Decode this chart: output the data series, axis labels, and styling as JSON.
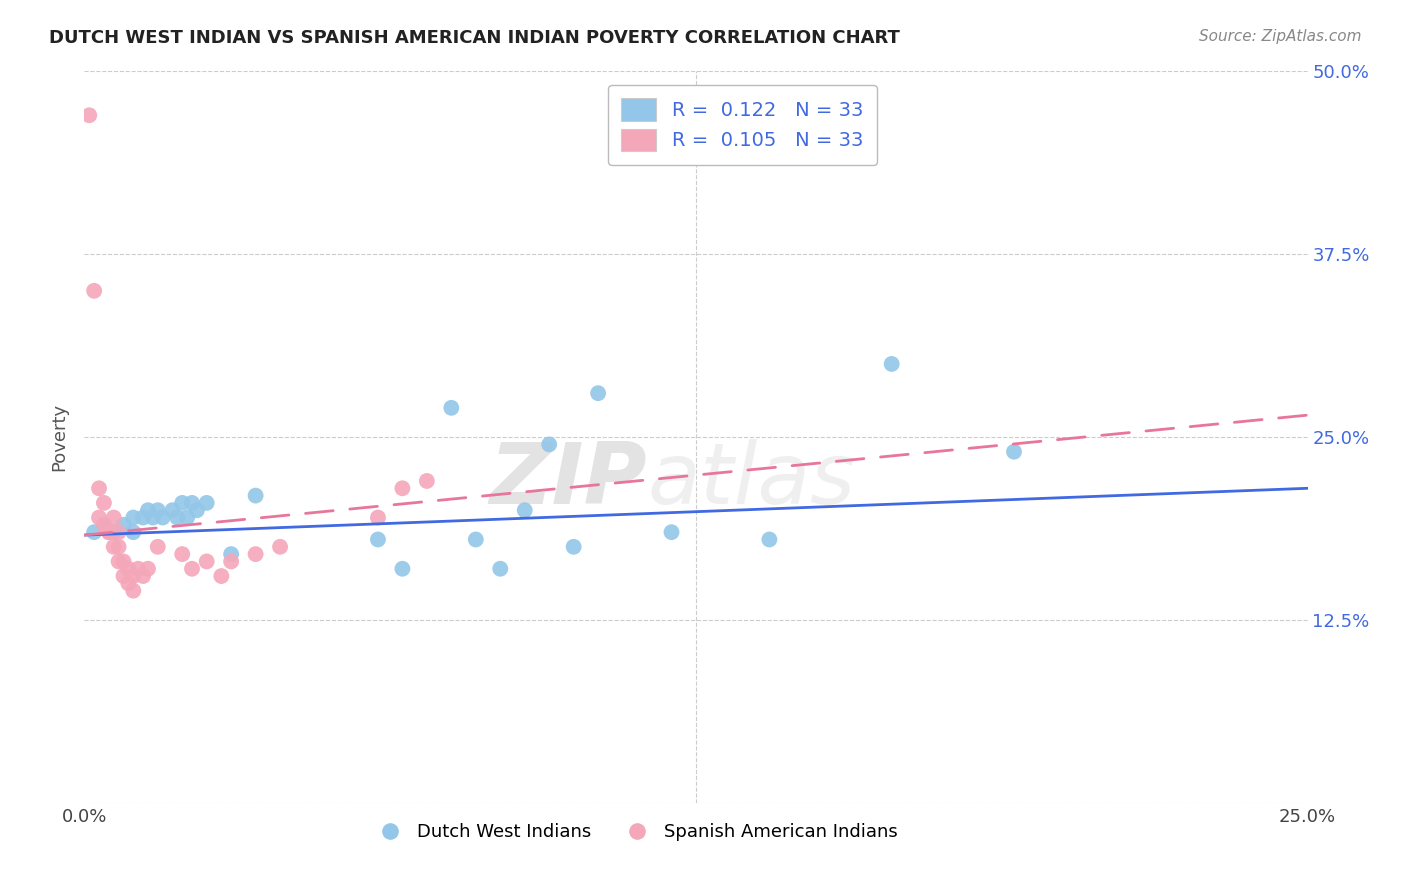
{
  "title": "DUTCH WEST INDIAN VS SPANISH AMERICAN INDIAN POVERTY CORRELATION CHART",
  "source": "Source: ZipAtlas.com",
  "ylabel": "Poverty",
  "xlim": [
    0.0,
    0.25
  ],
  "ylim": [
    0.0,
    0.5
  ],
  "xticks": [
    0.0,
    0.05,
    0.1,
    0.15,
    0.2,
    0.25
  ],
  "yticks": [
    0.0,
    0.125,
    0.25,
    0.375,
    0.5
  ],
  "xticklabels": [
    "0.0%",
    "",
    "",
    "",
    "",
    "25.0%"
  ],
  "yticklabels_right": [
    "",
    "12.5%",
    "25.0%",
    "37.5%",
    "50.0%"
  ],
  "blue_R": "0.122",
  "blue_N": "33",
  "pink_R": "0.105",
  "pink_N": "33",
  "blue_color": "#93C6E8",
  "pink_color": "#F4A7B9",
  "blue_line_color": "#4169E1",
  "pink_line_color": "#E8769A",
  "blue_scatter": [
    [
      0.002,
      0.185
    ],
    [
      0.004,
      0.19
    ],
    [
      0.006,
      0.185
    ],
    [
      0.008,
      0.19
    ],
    [
      0.01,
      0.185
    ],
    [
      0.01,
      0.195
    ],
    [
      0.012,
      0.195
    ],
    [
      0.013,
      0.2
    ],
    [
      0.014,
      0.195
    ],
    [
      0.015,
      0.2
    ],
    [
      0.016,
      0.195
    ],
    [
      0.018,
      0.2
    ],
    [
      0.019,
      0.195
    ],
    [
      0.02,
      0.205
    ],
    [
      0.021,
      0.195
    ],
    [
      0.022,
      0.205
    ],
    [
      0.023,
      0.2
    ],
    [
      0.025,
      0.205
    ],
    [
      0.03,
      0.17
    ],
    [
      0.035,
      0.21
    ],
    [
      0.06,
      0.18
    ],
    [
      0.065,
      0.16
    ],
    [
      0.075,
      0.27
    ],
    [
      0.08,
      0.18
    ],
    [
      0.085,
      0.16
    ],
    [
      0.09,
      0.2
    ],
    [
      0.095,
      0.245
    ],
    [
      0.1,
      0.175
    ],
    [
      0.105,
      0.28
    ],
    [
      0.12,
      0.185
    ],
    [
      0.14,
      0.18
    ],
    [
      0.165,
      0.3
    ],
    [
      0.19,
      0.24
    ]
  ],
  "pink_scatter": [
    [
      0.001,
      0.47
    ],
    [
      0.002,
      0.35
    ],
    [
      0.003,
      0.215
    ],
    [
      0.003,
      0.195
    ],
    [
      0.004,
      0.205
    ],
    [
      0.004,
      0.19
    ],
    [
      0.005,
      0.185
    ],
    [
      0.005,
      0.185
    ],
    [
      0.006,
      0.195
    ],
    [
      0.006,
      0.175
    ],
    [
      0.007,
      0.185
    ],
    [
      0.007,
      0.175
    ],
    [
      0.007,
      0.165
    ],
    [
      0.008,
      0.165
    ],
    [
      0.008,
      0.155
    ],
    [
      0.009,
      0.16
    ],
    [
      0.009,
      0.15
    ],
    [
      0.01,
      0.155
    ],
    [
      0.01,
      0.145
    ],
    [
      0.011,
      0.16
    ],
    [
      0.012,
      0.155
    ],
    [
      0.013,
      0.16
    ],
    [
      0.015,
      0.175
    ],
    [
      0.02,
      0.17
    ],
    [
      0.022,
      0.16
    ],
    [
      0.025,
      0.165
    ],
    [
      0.028,
      0.155
    ],
    [
      0.03,
      0.165
    ],
    [
      0.035,
      0.17
    ],
    [
      0.04,
      0.175
    ],
    [
      0.06,
      0.195
    ],
    [
      0.065,
      0.215
    ],
    [
      0.07,
      0.22
    ]
  ],
  "watermark_zip": "ZIP",
  "watermark_atlas": "atlas",
  "background_color": "#ffffff",
  "grid_color": "#cccccc"
}
